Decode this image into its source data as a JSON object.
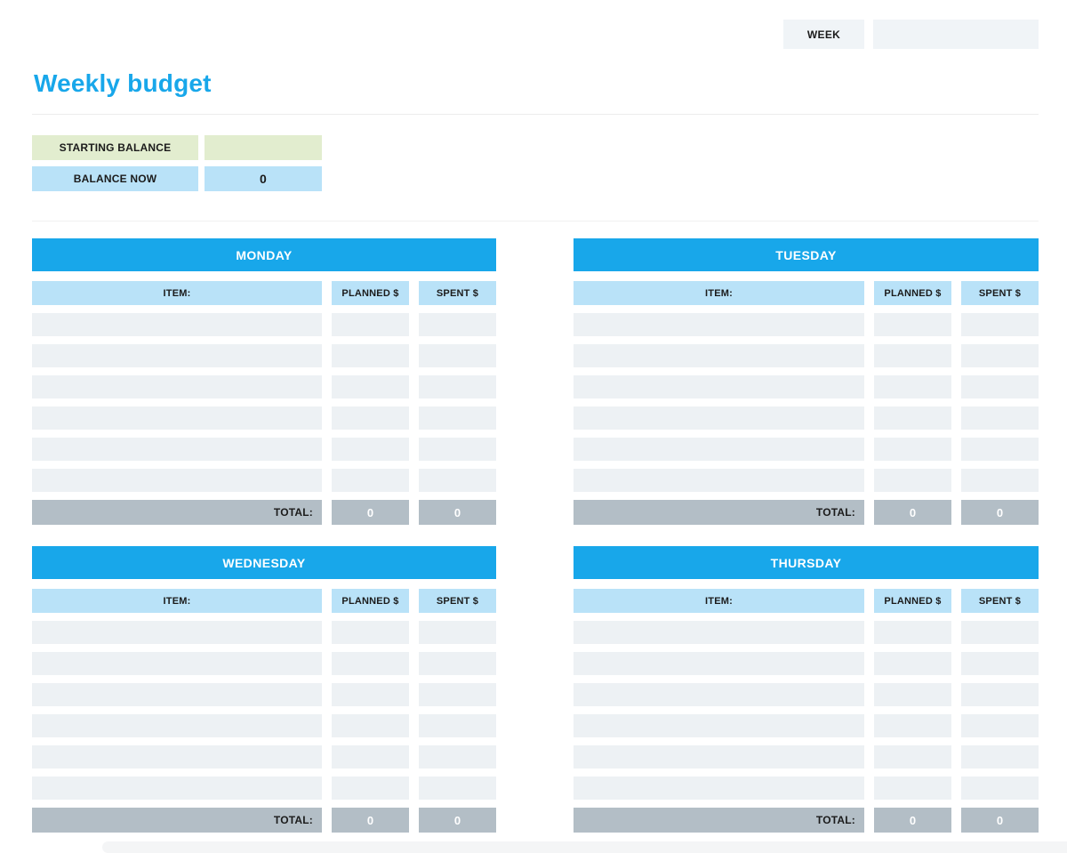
{
  "header": {
    "week_label": "WEEK",
    "week_value": ""
  },
  "page_title": "Weekly budget",
  "balance": {
    "starting_label": "STARTING BALANCE",
    "starting_value": "",
    "now_label": "BALANCE NOW",
    "now_value": "0"
  },
  "columns": {
    "item": "ITEM:",
    "planned": "PLANNED $",
    "spent": "SPENT $"
  },
  "totals": {
    "label": "TOTAL:"
  },
  "tables": [
    {
      "title": "MONDAY",
      "empty_rows": 6,
      "total_planned": "0",
      "total_spent": "0"
    },
    {
      "title": "TUESDAY",
      "empty_rows": 6,
      "total_planned": "0",
      "total_spent": "0"
    },
    {
      "title": "WEDNESDAY",
      "empty_rows": 6,
      "total_planned": "0",
      "total_spent": "0"
    },
    {
      "title": "THURSDAY",
      "empty_rows": 6,
      "total_planned": "0",
      "total_spent": "0"
    }
  ],
  "colors": {
    "accent_blue": "#18a7ea",
    "light_blue": "#b9e2f8",
    "light_green": "#e2edcf",
    "row_gray": "#edf1f4",
    "total_gray": "#b3bec6",
    "box_gray": "#f0f4f7"
  }
}
